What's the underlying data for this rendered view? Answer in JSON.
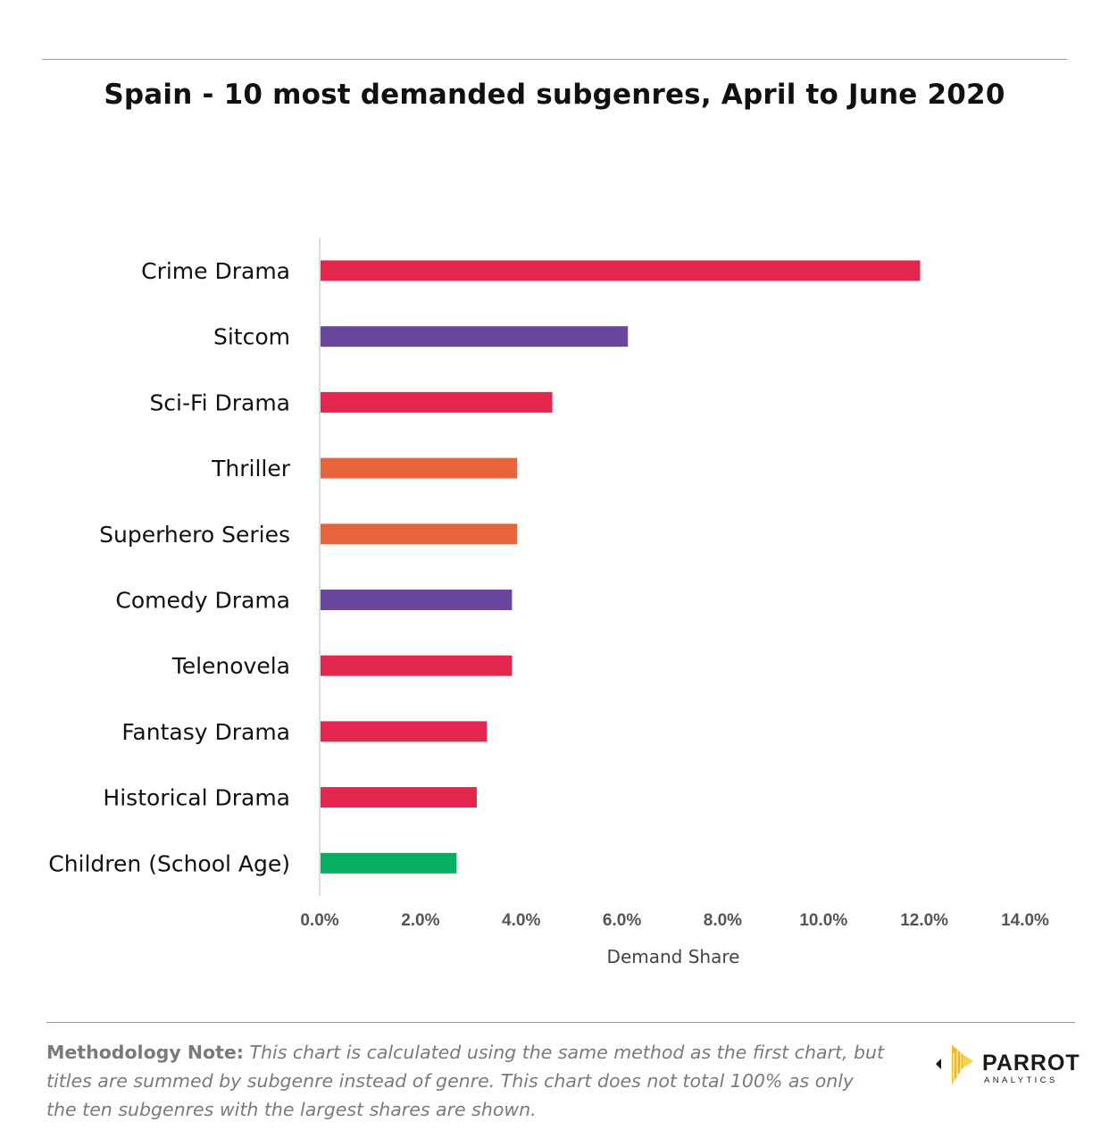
{
  "title": "Spain - 10 most demanded subgenres, April to June 2020",
  "chart_data": {
    "type": "bar",
    "orientation": "horizontal",
    "categories": [
      "Crime Drama",
      "Sitcom",
      "Sci-Fi Drama",
      "Thriller",
      "Superhero Series",
      "Comedy Drama",
      "Telenovela",
      "Fantasy Drama",
      "Historical Drama",
      "Children (School Age)"
    ],
    "values": [
      11.9,
      6.1,
      4.6,
      3.9,
      3.9,
      3.8,
      3.8,
      3.3,
      3.1,
      2.7
    ],
    "colors": [
      "#e3264e",
      "#6a479c",
      "#e3264e",
      "#e8643c",
      "#e8643c",
      "#6a479c",
      "#e3264e",
      "#e3264e",
      "#e3264e",
      "#06b060"
    ],
    "xlabel": "Demand Share",
    "xlim": [
      0,
      14
    ],
    "xticks": [
      "0.0%",
      "2.0%",
      "4.0%",
      "6.0%",
      "8.0%",
      "10.0%",
      "12.0%",
      "14.0%"
    ],
    "grid": false,
    "legend": "none"
  },
  "note": {
    "label": "Methodology Note:",
    "text": " This chart is calculated using the same method as the first chart, but titles are summed by subgenre instead of genre. This chart does not total 100% as only the ten subgenres with the largest shares are shown."
  },
  "logo": {
    "name": "PARROT",
    "sub": "ANALYTICS",
    "icon": "parrot-logo-icon"
  }
}
